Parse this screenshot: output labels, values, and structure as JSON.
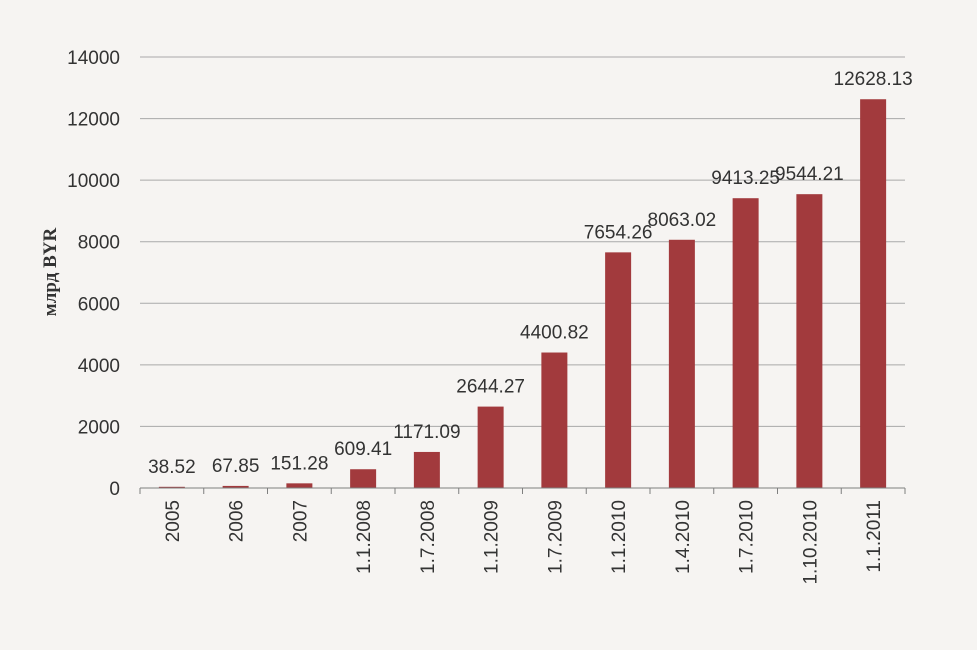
{
  "chart_data": {
    "type": "bar",
    "ylabel": "млрд BYR",
    "xlabel": "",
    "title": "",
    "ylim": [
      0,
      14000
    ],
    "yticks": [
      0,
      2000,
      4000,
      6000,
      8000,
      10000,
      12000,
      14000
    ],
    "grid": true,
    "legend": "none",
    "bar_color": "#a23a3d",
    "categories": [
      "2005",
      "2006",
      "2007",
      "1.1.2008",
      "1.7.2008",
      "1.1.2009",
      "1.7.2009",
      "1.1.2010",
      "1.4.2010",
      "1.7.2010",
      "1.10.2010",
      "1.1.2011"
    ],
    "values": [
      38.52,
      67.85,
      151.28,
      609.41,
      1171.09,
      2644.27,
      4400.82,
      7654.26,
      8063.02,
      9413.25,
      9544.21,
      12628.13
    ],
    "value_labels": [
      "38.52",
      "67.85",
      "151.28",
      "609.41",
      "1171.09",
      "2644.27",
      "4400.82",
      "7654.26",
      "8063.02",
      "9413.25",
      "9544.21",
      "12628.13"
    ]
  }
}
